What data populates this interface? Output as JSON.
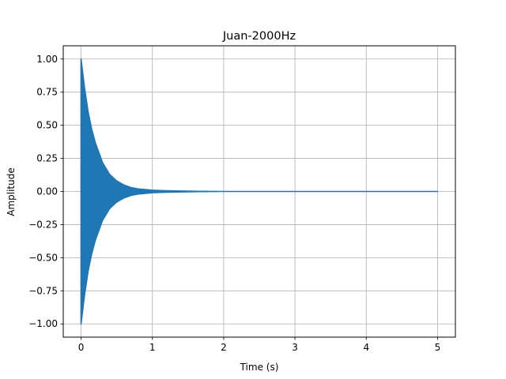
{
  "chart_data": {
    "type": "line",
    "title": "Juan-2000Hz",
    "xlabel": "Time (s)",
    "ylabel": "Amplitude",
    "xlim": [
      -0.25,
      5.25
    ],
    "ylim": [
      -1.1,
      1.1
    ],
    "x_ticks": [
      0,
      1,
      2,
      3,
      4,
      5
    ],
    "x_tick_labels": [
      "0",
      "1",
      "2",
      "3",
      "4",
      "5"
    ],
    "y_ticks": [
      -1.0,
      -0.75,
      -0.5,
      -0.25,
      0.0,
      0.25,
      0.5,
      0.75,
      1.0
    ],
    "y_tick_labels": [
      "−1.00",
      "−0.75",
      "−0.50",
      "−0.25",
      "0.00",
      "0.25",
      "0.50",
      "0.75",
      "1.00"
    ],
    "grid": true,
    "legend": "none",
    "series": [
      {
        "color": "#1f77b4",
        "frequency_hz": 2000,
        "duration_s": 5.0,
        "peak_amplitude": 1.0,
        "envelope_x": [
          0,
          0.05,
          0.1,
          0.15,
          0.2,
          0.3,
          0.4,
          0.5,
          0.6,
          0.7,
          0.8,
          1.0,
          1.2,
          1.4,
          1.6,
          2.0,
          3.0,
          4.0,
          5.0
        ],
        "envelope_y": [
          1.0,
          0.78,
          0.6,
          0.47,
          0.37,
          0.22,
          0.13,
          0.08,
          0.05,
          0.03,
          0.02,
          0.01,
          0.006,
          0.004,
          0.002,
          0.0,
          0.0,
          0.0,
          0.0
        ]
      }
    ]
  }
}
